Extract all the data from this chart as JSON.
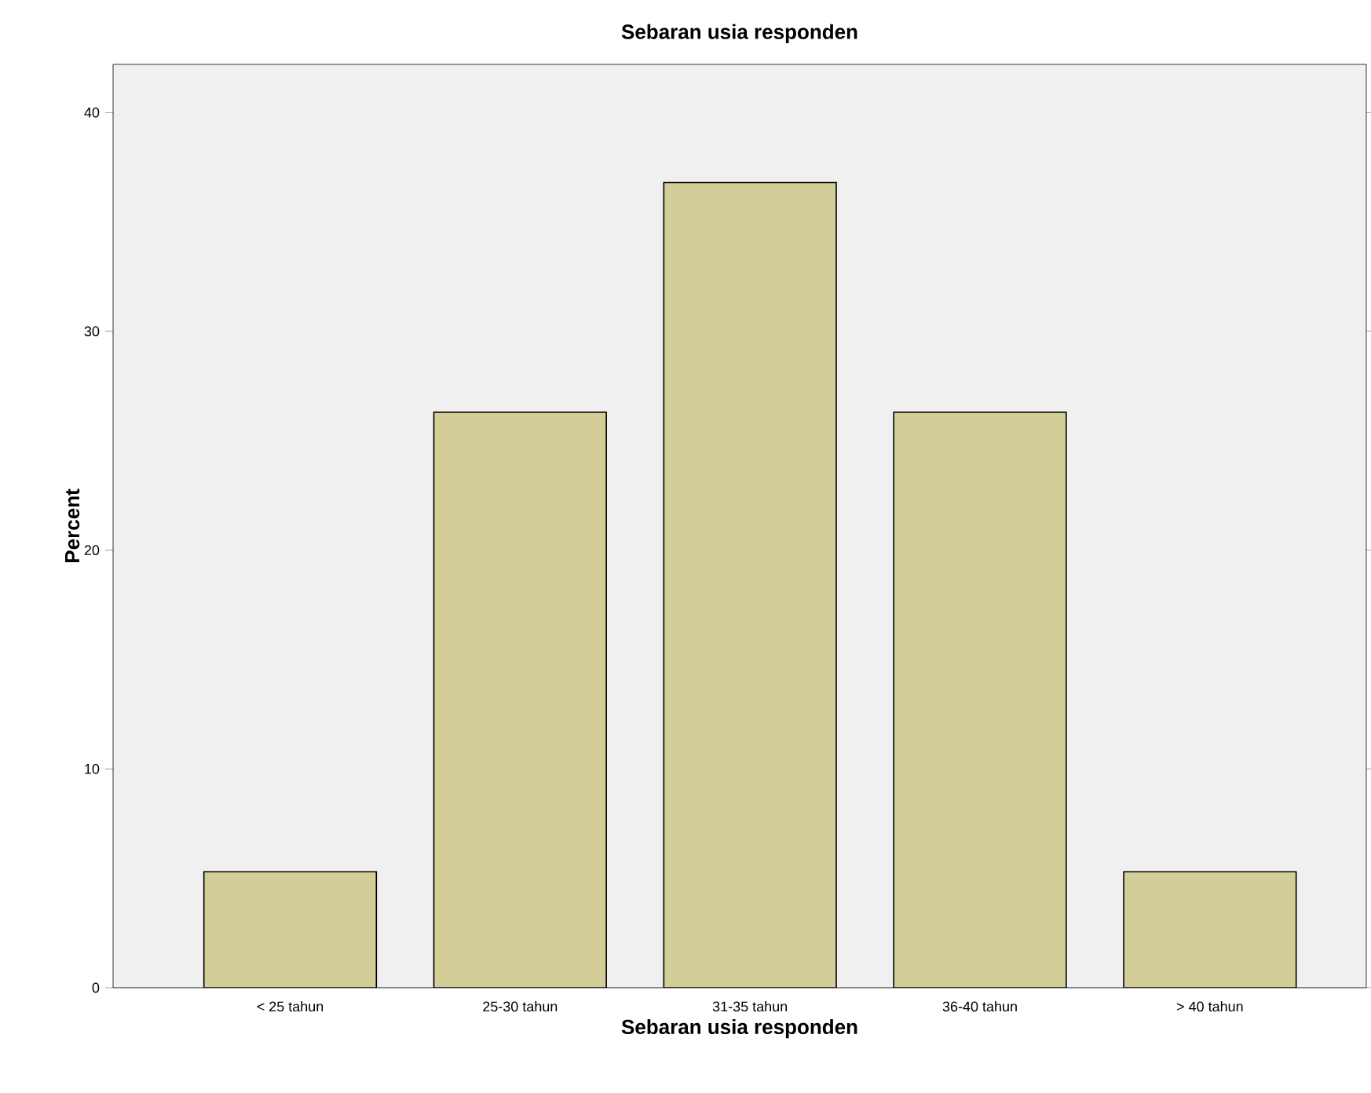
{
  "chart_data": {
    "type": "bar",
    "title": "Sebaran usia responden",
    "xlabel": "Sebaran usia responden",
    "ylabel": "Percent",
    "categories": [
      "< 25 tahun",
      "25-30 tahun",
      "31-35 tahun",
      "36-40 tahun",
      "> 40 tahun"
    ],
    "values": [
      5.3,
      26.3,
      36.8,
      26.3,
      5.3
    ],
    "color": "#d3ce97",
    "ylim": [
      0,
      42.2
    ],
    "yticks": [
      0,
      10,
      20,
      30,
      40
    ],
    "grid": false
  }
}
